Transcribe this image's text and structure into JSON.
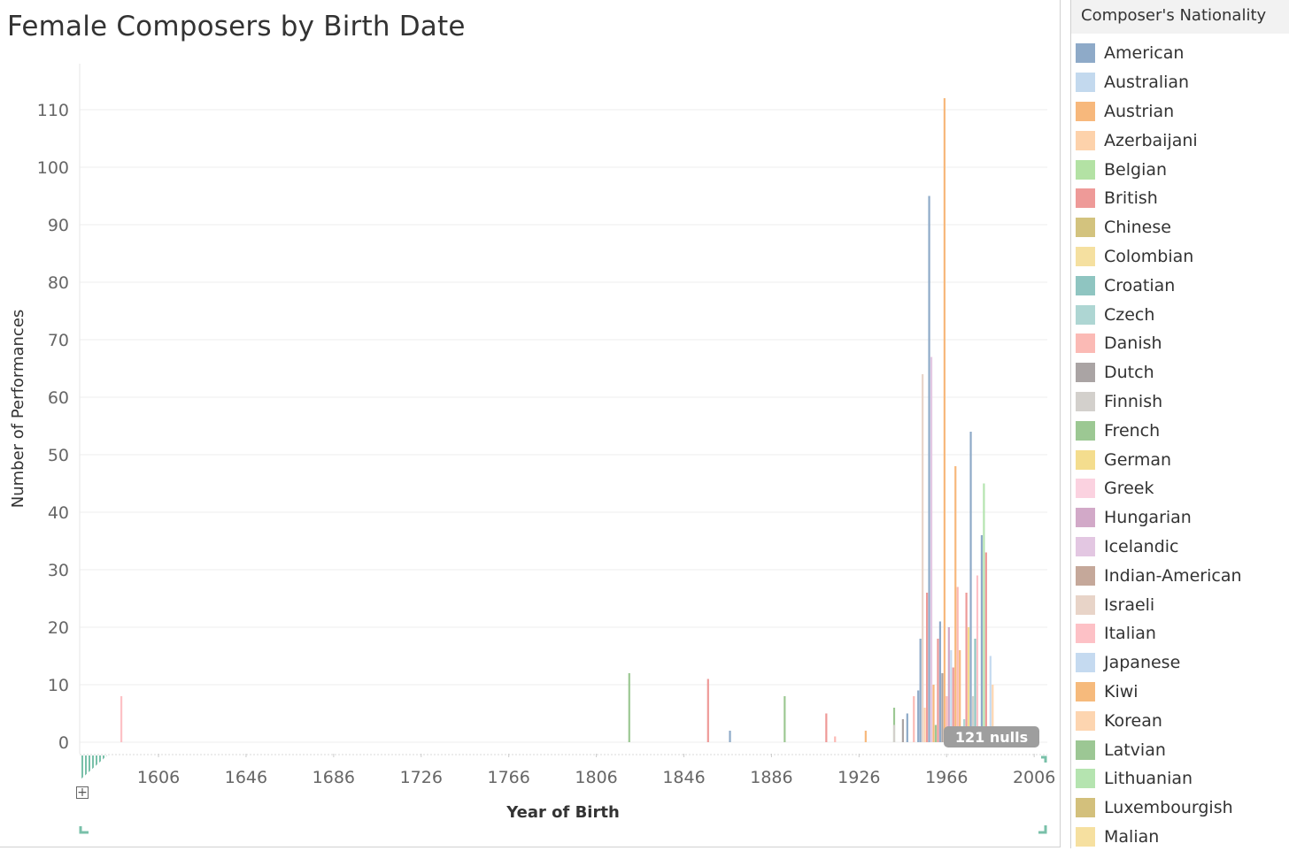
{
  "colors": {
    "grid": "#ececec",
    "axis_text": "#666666",
    "label_text": "#333333",
    "null_badge_bg": "#9e9e9e",
    "teal_marker": "#79c0a9"
  },
  "legend": {
    "title": "Composer's Nationality",
    "items": [
      {
        "name": "American",
        "color": "#8eaac8"
      },
      {
        "name": "Australian",
        "color": "#c3d9ee"
      },
      {
        "name": "Austrian",
        "color": "#f7b87c"
      },
      {
        "name": "Azerbaijani",
        "color": "#fdd2ab"
      },
      {
        "name": "Belgian",
        "color": "#b3e2a4"
      },
      {
        "name": "British",
        "color": "#ee9a98"
      },
      {
        "name": "Chinese",
        "color": "#d3c37e"
      },
      {
        "name": "Colombian",
        "color": "#f5e0a0"
      },
      {
        "name": "Croatian",
        "color": "#8fc5c1"
      },
      {
        "name": "Czech",
        "color": "#aed6d3"
      },
      {
        "name": "Danish",
        "color": "#fbbab5"
      },
      {
        "name": "Dutch",
        "color": "#aaa4a4"
      },
      {
        "name": "Finnish",
        "color": "#d3d0cc"
      },
      {
        "name": "French",
        "color": "#9cc893"
      },
      {
        "name": "German",
        "color": "#f4dd8e"
      },
      {
        "name": "Greek",
        "color": "#fbd2e0"
      },
      {
        "name": "Hungarian",
        "color": "#d2a9c8"
      },
      {
        "name": "Icelandic",
        "color": "#e3c7e2"
      },
      {
        "name": "Indian-American",
        "color": "#c5a89a"
      },
      {
        "name": "Israeli",
        "color": "#e8d4c8"
      },
      {
        "name": "Italian",
        "color": "#fdc1c6"
      },
      {
        "name": "Japanese",
        "color": "#c5daf0"
      },
      {
        "name": "Kiwi",
        "color": "#f6ba7c"
      },
      {
        "name": "Korean",
        "color": "#fdd5b0"
      },
      {
        "name": "Latvian",
        "color": "#9cc794"
      },
      {
        "name": "Lithuanian",
        "color": "#b5e4b0"
      },
      {
        "name": "Luxembourgish",
        "color": "#d3c07c"
      },
      {
        "name": "Malian",
        "color": "#f6e0a0"
      }
    ]
  },
  "chart_data": {
    "type": "bar",
    "title": "Female Composers by Birth Date",
    "xlabel": "Year of Birth",
    "ylabel": "Number of Performances",
    "xlim": [
      1570,
      2012
    ],
    "ylim": [
      -2,
      118
    ],
    "x_ticks": [
      1606,
      1646,
      1686,
      1726,
      1766,
      1806,
      1846,
      1886,
      1926,
      1966,
      2006
    ],
    "y_ticks": [
      0,
      10,
      20,
      30,
      40,
      50,
      60,
      70,
      80,
      90,
      100,
      110
    ],
    "grid": true,
    "legend_position": "right",
    "null_indicator": "121 nulls",
    "bars": [
      {
        "x": 1589,
        "y": 8,
        "nationality": "Italian"
      },
      {
        "x": 1821,
        "y": 12,
        "nationality": "French"
      },
      {
        "x": 1857,
        "y": 11,
        "nationality": "British"
      },
      {
        "x": 1867,
        "y": 2,
        "nationality": "American"
      },
      {
        "x": 1892,
        "y": 8,
        "nationality": "French"
      },
      {
        "x": 1911,
        "y": 5,
        "nationality": "British"
      },
      {
        "x": 1915,
        "y": 1,
        "nationality": "Danish"
      },
      {
        "x": 1929,
        "y": 2,
        "nationality": "Austrian"
      },
      {
        "x": 1942,
        "y": 6,
        "nationality": "French"
      },
      {
        "x": 1942,
        "y": 3,
        "nationality": "Finnish"
      },
      {
        "x": 1946,
        "y": 4,
        "nationality": "Dutch"
      },
      {
        "x": 1948,
        "y": 5,
        "nationality": "American"
      },
      {
        "x": 1951,
        "y": 8,
        "nationality": "Danish"
      },
      {
        "x": 1953,
        "y": 9,
        "nationality": "American"
      },
      {
        "x": 1954,
        "y": 18,
        "nationality": "American"
      },
      {
        "x": 1955,
        "y": 64,
        "nationality": "Israeli"
      },
      {
        "x": 1956,
        "y": 6,
        "nationality": "Korean"
      },
      {
        "x": 1957,
        "y": 26,
        "nationality": "British"
      },
      {
        "x": 1958,
        "y": 95,
        "nationality": "American"
      },
      {
        "x": 1959,
        "y": 67,
        "nationality": "Icelandic"
      },
      {
        "x": 1960,
        "y": 10,
        "nationality": "Austrian"
      },
      {
        "x": 1961,
        "y": 3,
        "nationality": "French"
      },
      {
        "x": 1962,
        "y": 18,
        "nationality": "British"
      },
      {
        "x": 1963,
        "y": 21,
        "nationality": "American"
      },
      {
        "x": 1964,
        "y": 12,
        "nationality": "Dutch"
      },
      {
        "x": 1965,
        "y": 112,
        "nationality": "Austrian"
      },
      {
        "x": 1966,
        "y": 8,
        "nationality": "Danish"
      },
      {
        "x": 1967,
        "y": 20,
        "nationality": "Hungarian"
      },
      {
        "x": 1968,
        "y": 16,
        "nationality": "Japanese"
      },
      {
        "x": 1969,
        "y": 13,
        "nationality": "British"
      },
      {
        "x": 1970,
        "y": 48,
        "nationality": "Austrian"
      },
      {
        "x": 1971,
        "y": 27,
        "nationality": "Danish"
      },
      {
        "x": 1972,
        "y": 16,
        "nationality": "Austrian"
      },
      {
        "x": 1974,
        "y": 4,
        "nationality": "Czech"
      },
      {
        "x": 1975,
        "y": 26,
        "nationality": "British"
      },
      {
        "x": 1976,
        "y": 20,
        "nationality": "German"
      },
      {
        "x": 1977,
        "y": 54,
        "nationality": "American"
      },
      {
        "x": 1978,
        "y": 8,
        "nationality": "Finnish"
      },
      {
        "x": 1979,
        "y": 18,
        "nationality": "Croatian"
      },
      {
        "x": 1980,
        "y": 29,
        "nationality": "Italian"
      },
      {
        "x": 1982,
        "y": 36,
        "nationality": "American"
      },
      {
        "x": 1983,
        "y": 45,
        "nationality": "Lithuanian"
      },
      {
        "x": 1984,
        "y": 33,
        "nationality": "British"
      },
      {
        "x": 1986,
        "y": 15,
        "nationality": "Japanese"
      },
      {
        "x": 1987,
        "y": 10,
        "nationality": "Korean"
      }
    ]
  }
}
